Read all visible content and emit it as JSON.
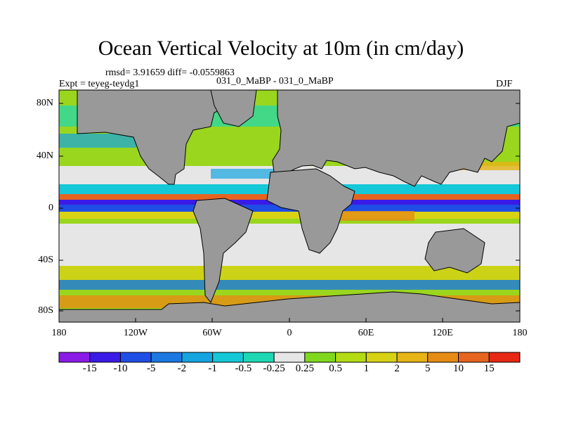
{
  "title": "Ocean Vertical Velocity at 10m (in cm/day)",
  "stats": "rmsd= 3.91659 diff= -0.0559863",
  "experiment": "Expt = teyeg-teydg1",
  "comparison": "031_0_MaBP - 031_0_MaBP",
  "season": "DJF",
  "lat_labels": [
    "80N",
    "40N",
    "0",
    "40S",
    "80S"
  ],
  "lon_labels": [
    "180",
    "120W",
    "60W",
    "0",
    "60E",
    "120E",
    "180"
  ],
  "colorbar": {
    "labels": [
      "-15",
      "-10",
      "-5",
      "-2",
      "-1",
      "-0.5",
      "-0.25",
      "0.25",
      "0.5",
      "1",
      "2",
      "5",
      "10",
      "15"
    ],
    "colors": [
      "#8a1ae6",
      "#3a1ae6",
      "#1f4ee6",
      "#1a78e0",
      "#14a4e0",
      "#14c8d8",
      "#1ed8b4",
      "#e6e6e6",
      "#7fd81e",
      "#b4dc14",
      "#d8d214",
      "#e6b414",
      "#e68c14",
      "#e6641e",
      "#e62814"
    ]
  },
  "colors": {
    "land": "#999999",
    "ocean_base": "#9ad61e",
    "coast": "#000000"
  }
}
